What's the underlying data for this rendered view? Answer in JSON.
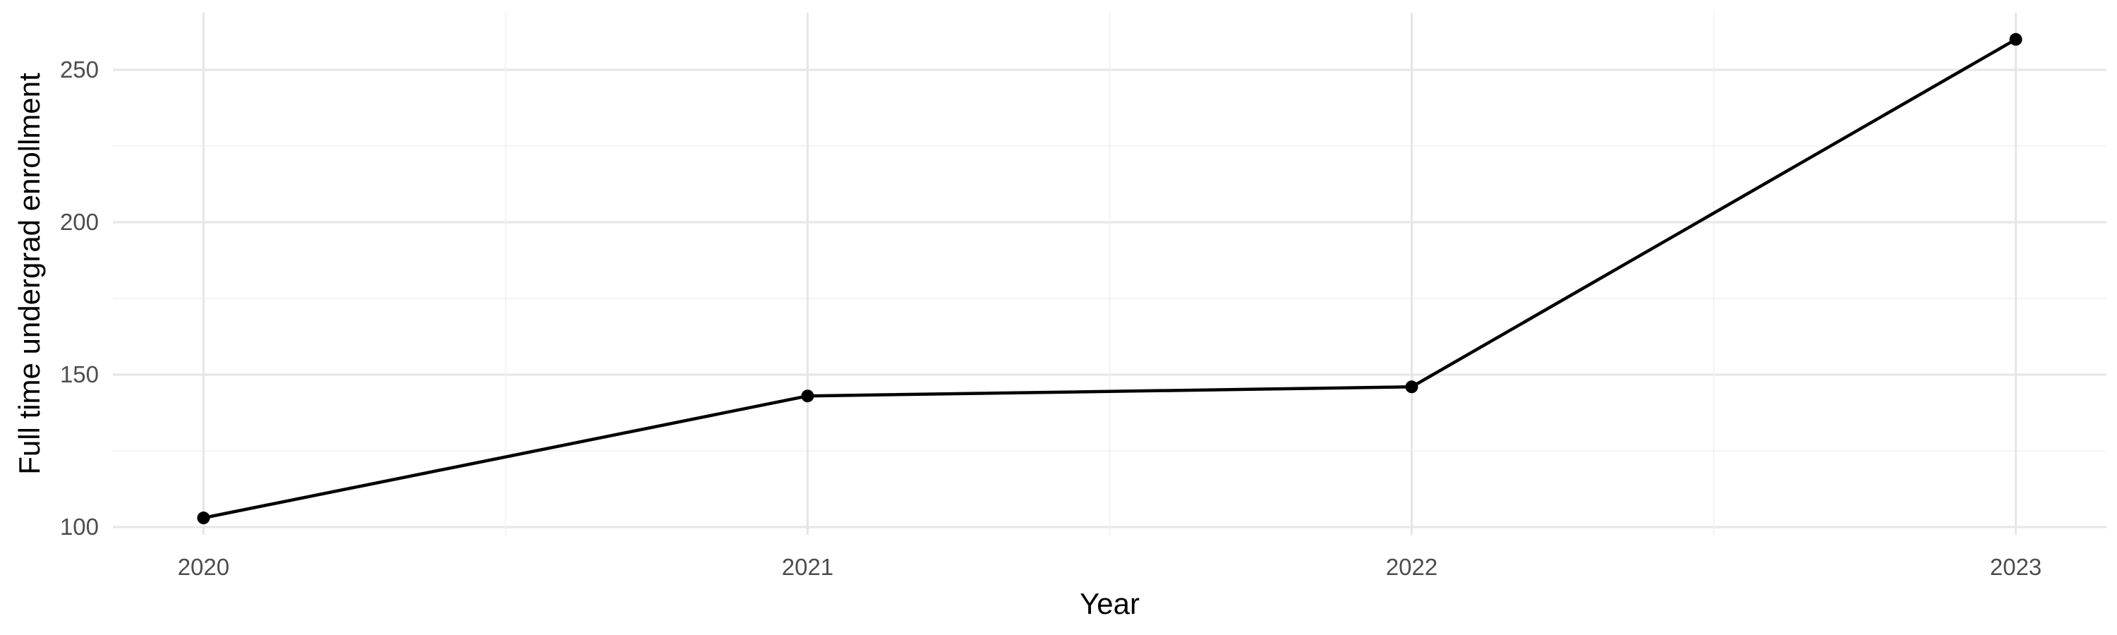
{
  "chart_data": {
    "type": "line",
    "title": "",
    "xlabel": "Year",
    "ylabel": "Full time undergrad enrollment",
    "x": [
      2020,
      2021,
      2022,
      2023
    ],
    "x_ticks": [
      "2020",
      "2021",
      "2022",
      "2023"
    ],
    "y_ticks": [
      "100",
      "150",
      "200",
      "250"
    ],
    "series": [
      {
        "values": [
          103,
          143,
          146,
          260
        ]
      }
    ],
    "xlim": [
      2019.85,
      2023.15
    ],
    "ylim": [
      100,
      265
    ],
    "grid": true,
    "legend": "none",
    "colors": {
      "line": "#000000",
      "point": "#000000",
      "grid": "#e6e6e6"
    }
  }
}
